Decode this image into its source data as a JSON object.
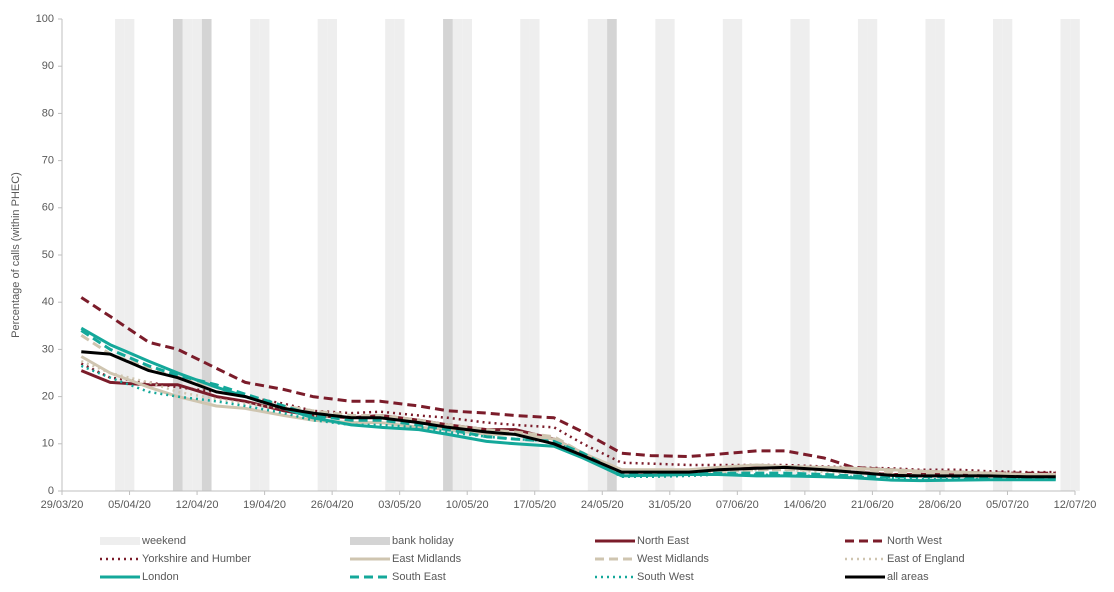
{
  "chart_data": {
    "type": "line",
    "y_label": "Percentage of calls (within PHEC)",
    "xlim": [
      "29/03/20",
      "12/07/20"
    ],
    "xticks": [
      "29/03/20",
      "05/04/20",
      "12/04/20",
      "19/04/20",
      "26/04/20",
      "03/05/20",
      "10/05/20",
      "17/05/20",
      "24/05/20",
      "31/05/20",
      "07/06/20",
      "14/06/20",
      "21/06/20",
      "28/06/20",
      "05/07/20",
      "12/07/20"
    ],
    "ylim": [
      0,
      100
    ],
    "yticks": [
      0,
      10,
      20,
      30,
      40,
      50,
      60,
      70,
      80,
      90,
      100
    ],
    "bands": [
      {
        "name": "weekend",
        "color": "#eeeeee",
        "dates": [
          "04/04/20",
          "05/04/20",
          "11/04/20",
          "12/04/20",
          "18/04/20",
          "19/04/20",
          "25/04/20",
          "26/04/20",
          "02/05/20",
          "03/05/20",
          "09/05/20",
          "10/05/20",
          "16/05/20",
          "17/05/20",
          "23/05/20",
          "24/05/20",
          "30/05/20",
          "31/05/20",
          "06/06/20",
          "07/06/20",
          "13/06/20",
          "14/06/20",
          "20/06/20",
          "21/06/20",
          "27/06/20",
          "28/06/20",
          "04/07/20",
          "05/07/20",
          "11/07/20",
          "12/07/20"
        ]
      },
      {
        "name": "bank holiday",
        "color": "#d4d4d4",
        "dates": [
          "10/04/20",
          "13/04/20",
          "08/05/20",
          "25/05/20"
        ]
      }
    ],
    "x": [
      "31/03/20",
      "03/04/20",
      "07/04/20",
      "10/04/20",
      "14/04/20",
      "17/04/20",
      "21/04/20",
      "24/04/20",
      "28/04/20",
      "01/05/20",
      "05/05/20",
      "08/05/20",
      "12/05/20",
      "15/05/20",
      "19/05/20",
      "22/05/20",
      "26/05/20",
      "29/05/20",
      "02/06/20",
      "05/06/20",
      "09/06/20",
      "12/06/20",
      "16/06/20",
      "19/06/20",
      "23/06/20",
      "26/06/20",
      "30/06/20",
      "03/07/20",
      "07/07/20",
      "10/07/20"
    ],
    "series": [
      {
        "name": "North East",
        "color": "#7b1c2a",
        "dash": "solid",
        "values": [
          25.5,
          23,
          22.5,
          22.5,
          20,
          19,
          17,
          16,
          15.5,
          16,
          15,
          14,
          13,
          13,
          11,
          8,
          4.2,
          4.2,
          4.3,
          4.5,
          5,
          5,
          4.5,
          4,
          3.5,
          3.5,
          3.5,
          3.5,
          3.2,
          3.2
        ]
      },
      {
        "name": "North West",
        "color": "#7b1c2a",
        "dash": "dashed",
        "values": [
          41,
          37,
          31.5,
          30,
          26,
          23,
          21.5,
          20,
          19,
          19,
          18,
          17,
          16.5,
          16,
          15.5,
          12.5,
          8,
          7.5,
          7.3,
          7.8,
          8.5,
          8.5,
          7,
          5,
          4.5,
          4.2,
          4,
          3.8,
          3.8,
          3.8
        ]
      },
      {
        "name": "Yorkshire and Humber",
        "color": "#7b1c2a",
        "dash": "dotted",
        "values": [
          27,
          24,
          23,
          22,
          21,
          20,
          18.5,
          17,
          16.5,
          16.8,
          16,
          15.5,
          14.5,
          14,
          13.5,
          10,
          6,
          5.8,
          5.5,
          5.5,
          5.5,
          5.5,
          5.2,
          5,
          4.8,
          4.5,
          4.5,
          4.2,
          4,
          4
        ]
      },
      {
        "name": "East Midlands",
        "color": "#cfc5b0",
        "dash": "solid",
        "values": [
          28.5,
          25,
          22,
          20,
          18,
          17.5,
          16,
          15,
          14.5,
          14.5,
          13.5,
          13,
          12,
          12,
          11,
          8,
          4.5,
          4.5,
          4.5,
          5,
          5.5,
          5.2,
          5,
          4.8,
          4.5,
          4.2,
          4,
          3.8,
          3.5,
          3.5
        ]
      },
      {
        "name": "West Midlands",
        "color": "#cfc5b0",
        "dash": "dashed",
        "values": [
          33,
          29,
          26,
          24,
          22,
          20,
          18,
          17,
          16,
          16,
          15,
          14,
          13,
          12.5,
          11.5,
          8,
          4.5,
          4.3,
          4,
          4.2,
          4.5,
          4.5,
          4.5,
          4.2,
          4,
          3.8,
          3.5,
          3.3,
          3.2,
          3
        ]
      },
      {
        "name": "East of England",
        "color": "#cfc5b0",
        "dash": "dotted",
        "values": [
          27.5,
          25,
          23,
          21,
          19.5,
          18.5,
          17.5,
          16,
          15.5,
          15.5,
          14.5,
          13.5,
          12.5,
          12,
          11,
          7.5,
          3.8,
          4,
          4,
          4,
          4.5,
          4.5,
          4,
          3.8,
          3.5,
          3.3,
          3,
          3,
          3,
          3
        ]
      },
      {
        "name": "London",
        "color": "#14a89a",
        "dash": "solid",
        "values": [
          34.5,
          31,
          27.5,
          25,
          22,
          20,
          17.5,
          15.5,
          14,
          13.5,
          13,
          12,
          10.5,
          10,
          9.5,
          7,
          3.2,
          3.3,
          3.5,
          3.5,
          3.2,
          3.2,
          3,
          2.8,
          2.3,
          2.2,
          2.3,
          2.4,
          2.4,
          2.4
        ]
      },
      {
        "name": "South East",
        "color": "#14a89a",
        "dash": "dashed",
        "values": [
          34,
          30,
          26.5,
          24.5,
          22.5,
          20.5,
          18,
          16,
          15,
          15,
          14,
          13,
          11.5,
          11,
          10.5,
          8,
          3.5,
          3.5,
          3.8,
          3.8,
          3.8,
          3.8,
          3.5,
          3.2,
          3,
          3,
          3,
          2.8,
          2.8,
          2.8
        ]
      },
      {
        "name": "South West",
        "color": "#14a89a",
        "dash": "dotted",
        "values": [
          26.5,
          24,
          21,
          20,
          19,
          18,
          16.5,
          15,
          14,
          14,
          13.5,
          12.5,
          11.5,
          11,
          10.5,
          7.5,
          3,
          3,
          3.2,
          3.5,
          3.5,
          3.3,
          3.2,
          3,
          2.8,
          2.5,
          2.5,
          2.5,
          2.5,
          2.5
        ]
      },
      {
        "name": "all areas",
        "color": "#000000",
        "dash": "solid",
        "values": [
          29.5,
          29,
          25.5,
          24,
          21,
          20,
          17.5,
          16.5,
          15.5,
          15.5,
          14.5,
          13.5,
          12.5,
          12,
          10,
          7.5,
          4,
          4,
          4,
          4.5,
          4.8,
          5,
          4.5,
          4,
          3.3,
          3.2,
          3.2,
          3.2,
          3,
          3
        ]
      }
    ]
  }
}
